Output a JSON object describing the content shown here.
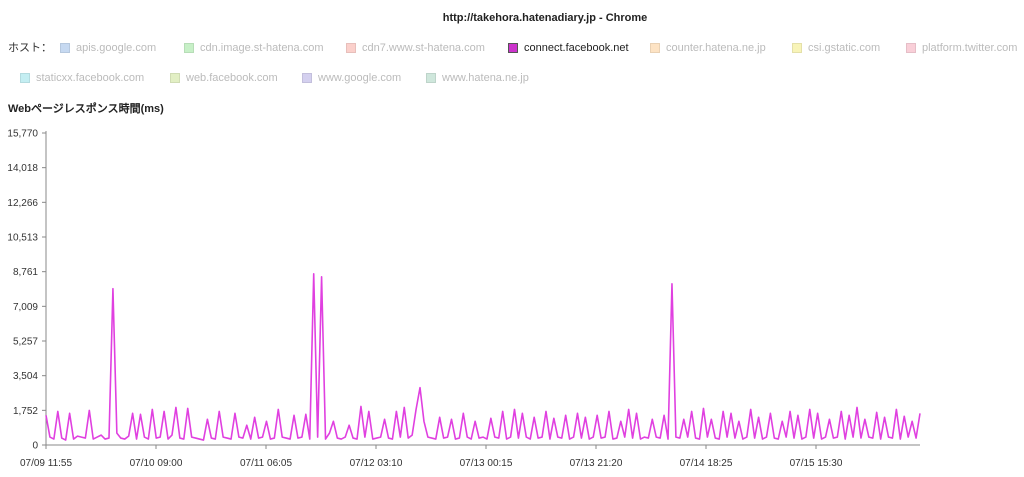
{
  "window_title": "http://takehora.hatenadiary.jp - Chrome",
  "legend": {
    "label": "ホスト：",
    "items": [
      {
        "label": "apis.google.com",
        "color": "#c6d9f1",
        "active": false
      },
      {
        "label": "cdn.image.st-hatena.com",
        "color": "#c7f0c7",
        "active": false
      },
      {
        "label": "cdn7.www.st-hatena.com",
        "color": "#fbd0cb",
        "active": false
      },
      {
        "label": "connect.facebook.net",
        "color": "#cc33cc",
        "active": true
      },
      {
        "label": "counter.hatena.ne.jp",
        "color": "#fde3c4",
        "active": false
      },
      {
        "label": "csi.gstatic.com",
        "color": "#f8f4b8",
        "active": false
      },
      {
        "label": "platform.twitter.com",
        "color": "#f9cfd8",
        "active": false
      },
      {
        "label": "staticxx.facebook.com",
        "color": "#c4eef2",
        "active": false
      },
      {
        "label": "web.facebook.com",
        "color": "#e2efc4",
        "active": false
      },
      {
        "label": "www.google.com",
        "color": "#d4d0ef",
        "active": false
      },
      {
        "label": "www.hatena.ne.jp",
        "color": "#cfe7dc",
        "active": false
      }
    ]
  },
  "chart_data": {
    "type": "line",
    "title": "http://takehora.hatenadiary.jp - Chrome",
    "ylabel": "Webページレスポンス時間(ms)",
    "xlabel": "",
    "ylim": [
      0,
      15770
    ],
    "yticks": [
      0,
      1752,
      3504,
      5257,
      7009,
      8761,
      10513,
      12266,
      14018,
      15770
    ],
    "ytick_labels": [
      "0",
      "1,752",
      "3,504",
      "5,257",
      "7,009",
      "8,761",
      "10,513",
      "12,266",
      "14,018",
      "15,770"
    ],
    "xtick_labels": [
      "07/09 11:55",
      "07/10 09:00",
      "07/11 06:05",
      "07/12 03:10",
      "07/13 00:15",
      "07/13 21:20",
      "07/14 18:25",
      "07/15 15:30"
    ],
    "grid": false,
    "legend_position": "top",
    "series": [
      {
        "name": "connect.facebook.net",
        "color": "#e040e0",
        "values": [
          1500,
          400,
          300,
          1700,
          350,
          250,
          1600,
          300,
          450,
          400,
          350,
          1750,
          300,
          400,
          500,
          300,
          350,
          7900,
          600,
          350,
          300,
          450,
          1600,
          300,
          1550,
          400,
          300,
          1800,
          350,
          400,
          1700,
          300,
          500,
          1900,
          350,
          300,
          1850,
          400,
          350,
          300,
          250,
          1300,
          350,
          300,
          1700,
          400,
          350,
          300,
          1600,
          400,
          350,
          1000,
          300,
          1400,
          350,
          400,
          1200,
          300,
          350,
          1800,
          400,
          350,
          300,
          1500,
          350,
          400,
          1550,
          300,
          8650,
          400,
          8500,
          300,
          600,
          1200,
          350,
          300,
          400,
          1000,
          350,
          300,
          1950,
          400,
          1700,
          300,
          350,
          400,
          1300,
          350,
          300,
          1700,
          400,
          1900,
          350,
          500,
          1800,
          2900,
          1200,
          400,
          350,
          300,
          1400,
          350,
          400,
          1300,
          300,
          350,
          1600,
          400,
          300,
          1200,
          350,
          400,
          300,
          1350,
          400,
          350,
          1700,
          300,
          400,
          1800,
          350,
          1600,
          400,
          300,
          1400,
          350,
          400,
          1700,
          300,
          1350,
          400,
          350,
          1500,
          300,
          400,
          1600,
          350,
          1400,
          300,
          400,
          1500,
          350,
          400,
          1700,
          300,
          350,
          1200,
          400,
          1800,
          350,
          1600,
          300,
          400,
          350,
          1300,
          400,
          350,
          1500,
          300,
          8150,
          400,
          350,
          1300,
          400,
          1700,
          350,
          300,
          1850,
          400,
          1300,
          350,
          300,
          1700,
          400,
          1600,
          350,
          1200,
          300,
          400,
          1800,
          350,
          1400,
          300,
          400,
          1600,
          350,
          300,
          1200,
          400,
          1700,
          350,
          1500,
          300,
          400,
          1800,
          350,
          1600,
          300,
          400,
          1300,
          350,
          400,
          1700,
          300,
          1500,
          400,
          1900,
          350,
          1300,
          400,
          350,
          1650,
          300,
          1400,
          400,
          350,
          1800,
          300,
          1450,
          400,
          1200,
          350,
          1600
        ]
      }
    ]
  }
}
